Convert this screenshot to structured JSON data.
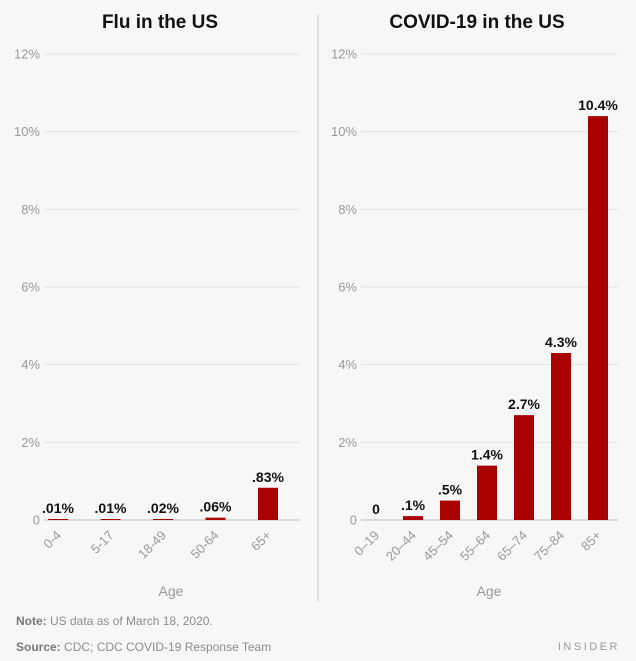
{
  "chart_data": [
    {
      "type": "bar",
      "title": "Flu in the US",
      "xlabel": "Age",
      "ylabel": "",
      "ylim": [
        0,
        12
      ],
      "yticks": [
        "0",
        "2%",
        "4%",
        "6%",
        "8%",
        "10%",
        "12%"
      ],
      "categories": [
        "0-4",
        "5-17",
        "18-49",
        "50-64",
        "65+"
      ],
      "values": [
        0.01,
        0.01,
        0.02,
        0.06,
        0.83
      ],
      "labels": [
        ".01%",
        ".01%",
        ".02%",
        ".06%",
        ".83%"
      ],
      "bar_color": "#a90000",
      "grid": true
    },
    {
      "type": "bar",
      "title": "COVID-19 in the US",
      "xlabel": "Age",
      "ylabel": "",
      "ylim": [
        0,
        12
      ],
      "yticks": [
        "0",
        "2%",
        "4%",
        "6%",
        "8%",
        "10%",
        "12%"
      ],
      "categories": [
        "0–19",
        "20–44",
        "45–54",
        "55–64",
        "65–74",
        "75–84",
        "85+"
      ],
      "values": [
        0,
        0.1,
        0.5,
        1.4,
        2.7,
        4.3,
        10.4
      ],
      "labels": [
        "0",
        ".1%",
        ".5%",
        "1.4%",
        "2.7%",
        "4.3%",
        "10.4%"
      ],
      "bar_color": "#a90000",
      "grid": true
    }
  ],
  "footer": {
    "note_label": "Note:",
    "note_text": " US data as of March 18, 2020.",
    "source_label": "Source:",
    "source_text": " CDC; CDC COVID-19 Response Team",
    "brand": "INSIDER"
  }
}
